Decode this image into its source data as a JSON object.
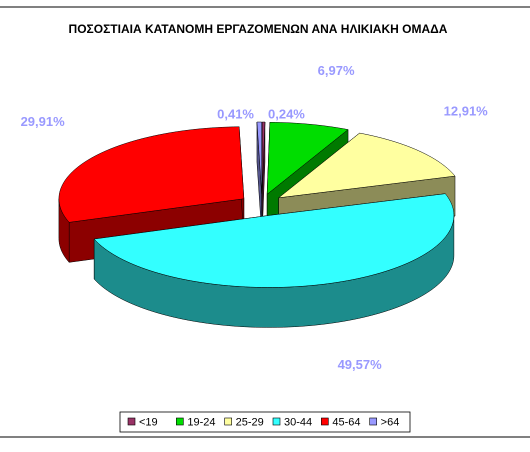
{
  "chart_data": {
    "type": "pie3d",
    "title": "ΠΟΣΟΣΤΙΑΙΑ ΚΑΤΑΝΟΜΗ ΕΡΓΑΖΟΜΕΝΩΝ ΑΝΑ ΗΛΙΚΙΑΚΗ ΟΜΑΔΑ",
    "categories": [
      "<19",
      "19-24",
      "25-29",
      "30-44",
      "45-64",
      ">64"
    ],
    "values": [
      0.24,
      6.97,
      12.91,
      49.57,
      29.91,
      0.41
    ],
    "value_labels": [
      "0,24%",
      "6,97%",
      "12,91%",
      "49,57%",
      "29,91%",
      "0,41%"
    ],
    "colors": [
      "#993366",
      "#00dd00",
      "#ffffa0",
      "#33ffff",
      "#ff0000",
      "#9999ff"
    ],
    "legend": "bottom"
  }
}
